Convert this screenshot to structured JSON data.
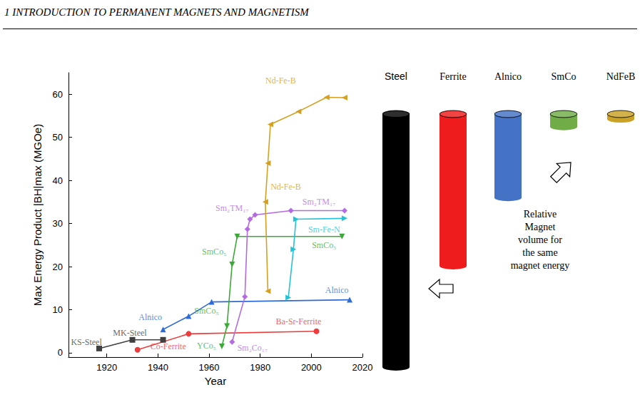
{
  "header": "1 INTRODUCTION TO PERMANENT MAGNETS AND MAGNETISM",
  "chart_data": {
    "type": "line",
    "x_label": "Year",
    "y_label": "Max Energy Product |BH|max (MGOe)",
    "xlim": [
      1905,
      2020
    ],
    "xticks": [
      1920,
      1940,
      1960,
      1980,
      2000,
      2020
    ],
    "ylim": [
      -1,
      65
    ],
    "yticks": [
      0,
      10,
      20,
      30,
      40,
      50,
      60
    ],
    "grid": false,
    "series": [
      {
        "color": "#404040",
        "marker": "square",
        "x": [
          1917,
          1930,
          1942
        ],
        "values": [
          1,
          3,
          3
        ]
      },
      {
        "color": "#ee3b3b",
        "marker": "circle",
        "x": [
          1932,
          1952,
          2002
        ],
        "values": [
          0.7,
          4.4,
          5
        ]
      },
      {
        "color": "#2f6bd6",
        "marker": "triangle-up",
        "x": [
          1942,
          1952,
          1961,
          2015
        ],
        "values": [
          5.4,
          8.5,
          11.8,
          12.3
        ]
      },
      {
        "color": "#3aa935",
        "marker": "triangle-down",
        "x": [
          1965,
          1967,
          1969,
          1971,
          2012
        ],
        "values": [
          1.5,
          6.2,
          20.5,
          27,
          27
        ]
      },
      {
        "color": "#b36ae2",
        "marker": "diamond",
        "x": [
          1969,
          1974,
          1975,
          1976,
          1978,
          1992,
          2013
        ],
        "values": [
          2.5,
          13,
          28.7,
          31,
          32,
          33,
          33
        ]
      },
      {
        "color": "#22c3d6",
        "marker": "triangle-right",
        "x": [
          1991,
          1993,
          1994,
          2013
        ],
        "values": [
          12.8,
          24,
          31,
          31.2
        ]
      },
      {
        "color": "#d4a020",
        "marker": "triangle-left",
        "x": [
          1983,
          1982,
          1983,
          1984,
          1995,
          2006,
          2013
        ],
        "values": [
          14.3,
          35,
          44,
          53,
          56,
          59.3,
          59.2
        ]
      }
    ],
    "annotations": [
      {
        "text": "KS-Steel",
        "x": 1912,
        "y": 2.4,
        "color": "#404040"
      },
      {
        "text": "MK-Steel",
        "x": 1929,
        "y": 4.6,
        "color": "#404040"
      },
      {
        "text": "Co-Ferrite",
        "x": 1944,
        "y": 1.4,
        "color": "#ee3b3b"
      },
      {
        "text": "Ba-Sr-Ferrite",
        "x": 1995,
        "y": 7.2,
        "color": "#ee3b3b"
      },
      {
        "text": "Alnico",
        "x": 1937,
        "y": 8.2,
        "color": "#2f6bd6"
      },
      {
        "text": "Alnico",
        "x": 2010,
        "y": 14.6,
        "color": "#2f6bd6"
      },
      {
        "text": "YCo₅",
        "x": 1959,
        "y": 1.6,
        "color": "#3aa935"
      },
      {
        "text": "SmCo₅",
        "x": 1959,
        "y": 9.8,
        "color": "#3aa935"
      },
      {
        "text": "SmCo₅",
        "x": 1962,
        "y": 23.5,
        "color": "#3aa935"
      },
      {
        "text": "SmCo₅",
        "x": 2005,
        "y": 25,
        "color": "#3aa935"
      },
      {
        "text": "Sm₂Co₁₇",
        "x": 1977,
        "y": 1.2,
        "color": "#b36ae2"
      },
      {
        "text": "Sm₂TM₁₇",
        "x": 1969,
        "y": 33.5,
        "color": "#b36ae2"
      },
      {
        "text": "Sm₂TM₁₇",
        "x": 2003,
        "y": 35,
        "color": "#b36ae2"
      },
      {
        "text": "Sm-Fe-N",
        "x": 2005,
        "y": 28.6,
        "color": "#22c3d6"
      },
      {
        "text": "Nd-Fe-B",
        "x": 1988,
        "y": 63.2,
        "color": "#d4a020"
      },
      {
        "text": "Nd-Fe-B",
        "x": 1990,
        "y": 38.5,
        "color": "#d4a020"
      }
    ]
  },
  "volume_figure": {
    "items": [
      {
        "label": "Steel",
        "color": "#000000",
        "relative_volume": 100
      },
      {
        "label": "Ferrite",
        "color": "#ee1c1c",
        "relative_volume": 60
      },
      {
        "label": "Alnico",
        "color": "#4472c4",
        "relative_volume": 33
      },
      {
        "label": "SmCo",
        "color": "#70ad47",
        "relative_volume": 5
      },
      {
        "label": "NdFeB",
        "color": "#c9a227",
        "relative_volume": 2
      }
    ],
    "caption": [
      "Relative",
      "Magnet",
      "volume for",
      "the same",
      "magnet energy"
    ]
  }
}
